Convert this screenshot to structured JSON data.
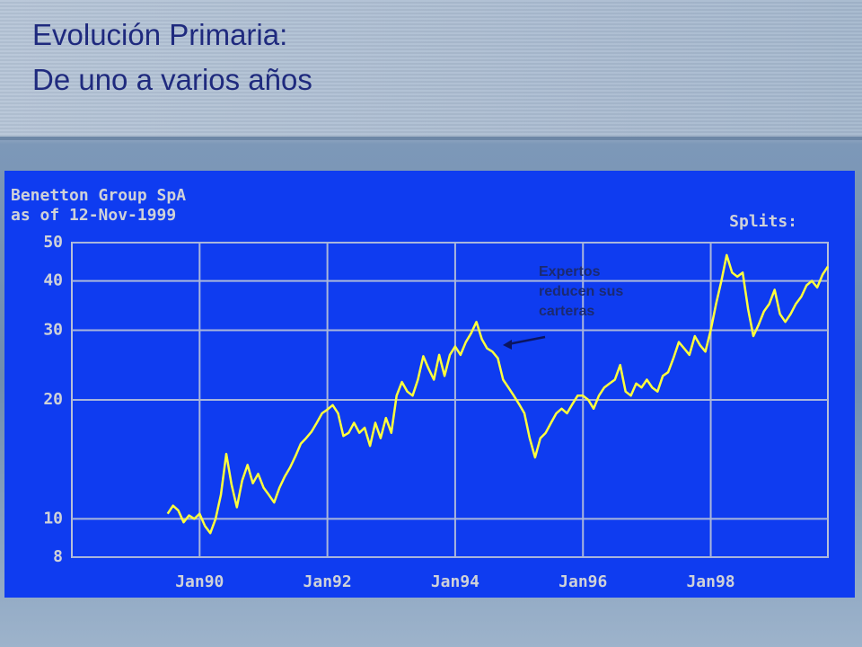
{
  "slide_title": [
    "Evolución Primaria:",
    "De uno a varios años"
  ],
  "chart_data": {
    "type": "line",
    "title": "Benetton Group SpA",
    "subtitle": "as of 12-Nov-1999",
    "splits_label": "Splits:",
    "annotation": "Expertos reducen sus carteras",
    "log_y": true,
    "grid": true,
    "xlim": [
      "1988-01",
      "1999-11"
    ],
    "xticks": [
      {
        "value": "1990-01",
        "label": "Jan90"
      },
      {
        "value": "1992-01",
        "label": "Jan92"
      },
      {
        "value": "1994-01",
        "label": "Jan94"
      },
      {
        "value": "1996-01",
        "label": "Jan96"
      },
      {
        "value": "1998-01",
        "label": "Jan98"
      }
    ],
    "ylim": [
      8,
      50
    ],
    "yticks": [
      8,
      10,
      20,
      30,
      40,
      50
    ],
    "x": [
      "1989-07",
      "1989-08",
      "1989-09",
      "1989-10",
      "1989-11",
      "1989-12",
      "1990-01",
      "1990-02",
      "1990-03",
      "1990-04",
      "1990-05",
      "1990-06",
      "1990-07",
      "1990-08",
      "1990-09",
      "1990-10",
      "1990-11",
      "1990-12",
      "1991-01",
      "1991-02",
      "1991-03",
      "1991-04",
      "1991-05",
      "1991-06",
      "1991-07",
      "1991-08",
      "1991-09",
      "1991-10",
      "1991-11",
      "1991-12",
      "1992-01",
      "1992-02",
      "1992-03",
      "1992-04",
      "1992-05",
      "1992-06",
      "1992-07",
      "1992-08",
      "1992-09",
      "1992-10",
      "1992-11",
      "1992-12",
      "1993-01",
      "1993-02",
      "1993-03",
      "1993-04",
      "1993-05",
      "1993-06",
      "1993-07",
      "1993-08",
      "1993-09",
      "1993-10",
      "1993-11",
      "1993-12",
      "1994-01",
      "1994-02",
      "1994-03",
      "1994-04",
      "1994-05",
      "1994-06",
      "1994-07",
      "1994-08",
      "1994-09",
      "1994-10",
      "1994-11",
      "1994-12",
      "1995-01",
      "1995-02",
      "1995-03",
      "1995-04",
      "1995-05",
      "1995-06",
      "1995-07",
      "1995-08",
      "1995-09",
      "1995-10",
      "1995-11",
      "1995-12",
      "1996-01",
      "1996-02",
      "1996-03",
      "1996-04",
      "1996-05",
      "1996-06",
      "1996-07",
      "1996-08",
      "1996-09",
      "1996-10",
      "1996-11",
      "1996-12",
      "1997-01",
      "1997-02",
      "1997-03",
      "1997-04",
      "1997-05",
      "1997-06",
      "1997-07",
      "1997-08",
      "1997-09",
      "1997-10",
      "1997-11",
      "1997-12",
      "1998-01",
      "1998-02",
      "1998-03",
      "1998-04",
      "1998-05",
      "1998-06",
      "1998-07",
      "1998-08",
      "1998-09",
      "1998-10",
      "1998-11",
      "1998-12",
      "1999-01",
      "1999-02",
      "1999-03",
      "1999-04",
      "1999-05",
      "1999-06",
      "1999-07",
      "1999-08",
      "1999-09",
      "1999-10",
      "1999-11"
    ],
    "series": [
      {
        "color": "#ffff3c",
        "values": [
          10.3,
          10.8,
          10.5,
          9.8,
          10.2,
          10.0,
          10.3,
          9.6,
          9.2,
          10.0,
          11.5,
          14.6,
          12.2,
          10.7,
          12.5,
          13.7,
          12.3,
          13.0,
          12.0,
          11.5,
          11.0,
          12.0,
          12.8,
          13.5,
          14.4,
          15.5,
          16.0,
          16.6,
          17.5,
          18.5,
          18.9,
          19.4,
          18.5,
          16.2,
          16.5,
          17.5,
          16.5,
          17.0,
          15.3,
          17.5,
          16.0,
          18.0,
          16.5,
          20.5,
          22.2,
          21.0,
          20.5,
          22.5,
          25.8,
          24.0,
          22.5,
          26.0,
          23.0,
          26.0,
          27.3,
          26.0,
          28.0,
          29.5,
          31.5,
          28.5,
          27.0,
          26.5,
          25.5,
          22.5,
          21.5,
          20.5,
          19.5,
          18.5,
          16.0,
          14.3,
          16.0,
          16.5,
          17.5,
          18.5,
          19.0,
          18.5,
          19.5,
          20.5,
          20.5,
          20.0,
          19.0,
          20.5,
          21.5,
          22.0,
          22.5,
          24.5,
          21.0,
          20.5,
          22.0,
          21.5,
          22.5,
          21.5,
          21.0,
          23.0,
          23.5,
          25.5,
          28.0,
          27.0,
          26.0,
          29.0,
          27.5,
          26.5,
          30.0,
          35.0,
          40.0,
          46.5,
          42.0,
          41.0,
          42.0,
          34.0,
          29.0,
          31.0,
          33.5,
          35.0,
          38.0,
          33.0,
          31.5,
          33.0,
          35.0,
          36.5,
          39.0,
          40.0,
          38.5,
          41.5,
          43.5
        ]
      }
    ]
  }
}
